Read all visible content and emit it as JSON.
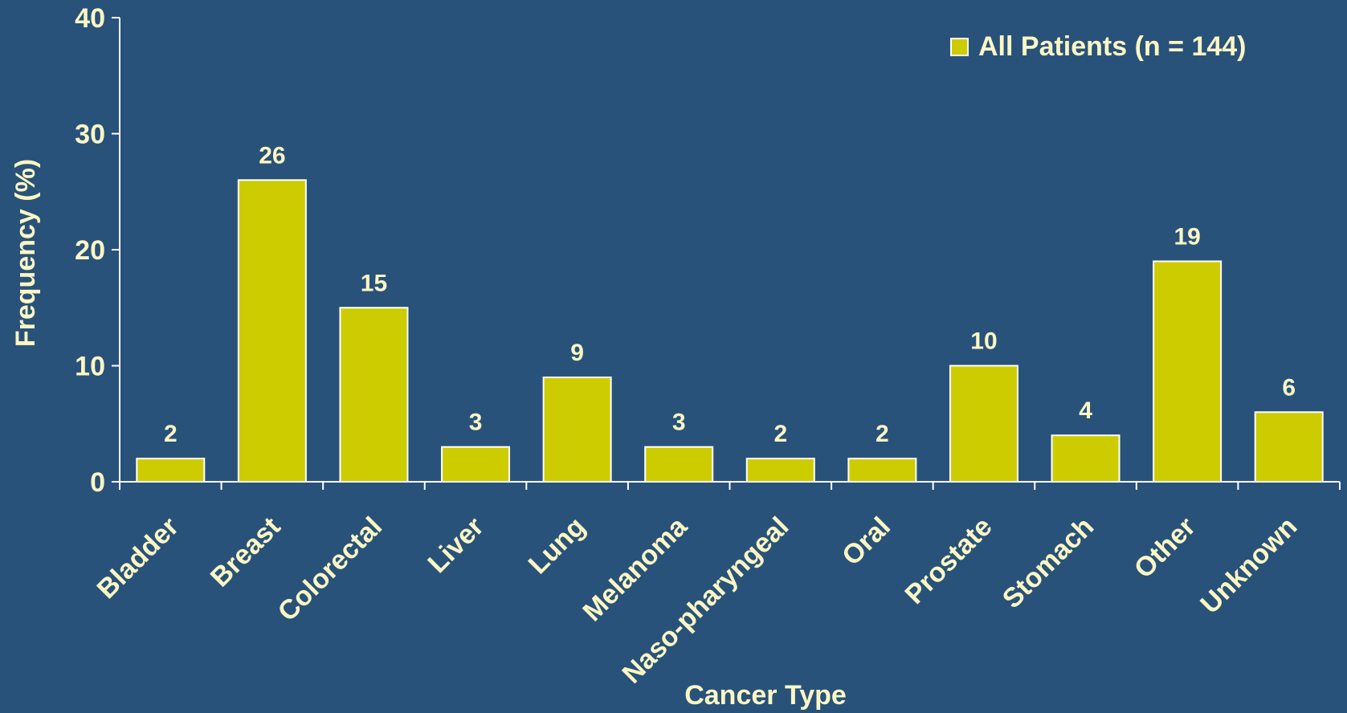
{
  "chart_data": {
    "type": "bar",
    "title": "",
    "xlabel": "Cancer Type",
    "ylabel": "Frequency (%)",
    "ylim": [
      0,
      40
    ],
    "yticks": [
      0,
      10,
      20,
      30,
      40
    ],
    "categories": [
      "Bladder",
      "Breast",
      "Colorectal",
      "Liver",
      "Lung",
      "Melanoma",
      "Naso-pharyngeal",
      "Oral",
      "Prostate",
      "Stomach",
      "Other",
      "Unknown"
    ],
    "series": [
      {
        "name": "All Patients (n = 144)",
        "values": [
          2,
          26,
          15,
          3,
          9,
          3,
          2,
          2,
          10,
          4,
          19,
          6
        ],
        "color": "#cccc00"
      }
    ],
    "data_labels": [
      "2",
      "26",
      "15",
      "3",
      "9",
      "3",
      "2",
      "2",
      "10",
      "4",
      "19",
      "6"
    ],
    "legend_position": "top-right",
    "grid": false
  },
  "colors": {
    "background": "#29527a",
    "text": "#fbf7c4",
    "axis": "#ffffff",
    "bar": "#cccc00"
  }
}
